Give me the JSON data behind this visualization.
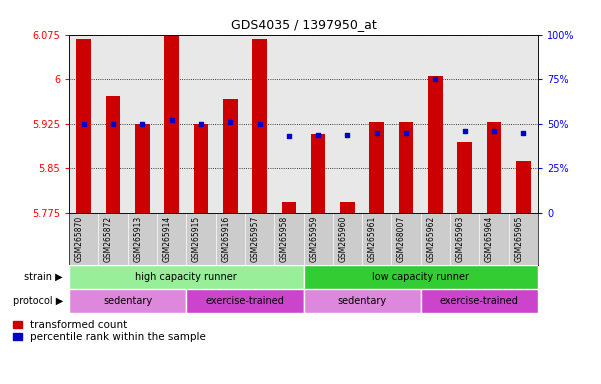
{
  "title": "GDS4035 / 1397950_at",
  "samples": [
    "GSM265870",
    "GSM265872",
    "GSM265913",
    "GSM265914",
    "GSM265915",
    "GSM265916",
    "GSM265957",
    "GSM265958",
    "GSM265959",
    "GSM265960",
    "GSM265961",
    "GSM268007",
    "GSM265962",
    "GSM265963",
    "GSM265964",
    "GSM265965"
  ],
  "transformed_count": [
    6.068,
    5.972,
    5.925,
    6.075,
    5.925,
    5.967,
    6.068,
    5.793,
    5.908,
    5.793,
    5.928,
    5.928,
    6.005,
    5.895,
    5.928,
    5.862
  ],
  "percentile_rank": [
    50,
    50,
    50,
    52,
    50,
    51,
    50,
    43,
    44,
    44,
    45,
    45,
    75,
    46,
    46,
    45
  ],
  "ylim_left": [
    5.775,
    6.075
  ],
  "ylim_right": [
    0,
    100
  ],
  "yticks_left": [
    5.775,
    5.85,
    5.925,
    6.0,
    6.075
  ],
  "yticks_right": [
    0,
    25,
    50,
    75,
    100
  ],
  "ytick_labels_left": [
    "5.775",
    "5.85",
    "5.925",
    "6",
    "6.075"
  ],
  "ytick_labels_right": [
    "0",
    "25%",
    "50%",
    "75%",
    "100%"
  ],
  "bar_color": "#cc0000",
  "dot_color": "#0000cc",
  "bar_bottom": 5.775,
  "strain_groups": [
    {
      "label": "high capacity runner",
      "start": 0,
      "end": 8,
      "color": "#99ee99"
    },
    {
      "label": "low capacity runner",
      "start": 8,
      "end": 16,
      "color": "#33cc33"
    }
  ],
  "protocol_groups": [
    {
      "label": "sedentary",
      "start": 0,
      "end": 4,
      "color": "#dd88dd"
    },
    {
      "label": "exercise-trained",
      "start": 4,
      "end": 8,
      "color": "#cc44cc"
    },
    {
      "label": "sedentary",
      "start": 8,
      "end": 12,
      "color": "#dd88dd"
    },
    {
      "label": "exercise-trained",
      "start": 12,
      "end": 16,
      "color": "#cc44cc"
    }
  ],
  "legend_red_label": "transformed count",
  "legend_blue_label": "percentile rank within the sample",
  "background_color": "#e8e8e8",
  "tick_bg_color": "#cccccc",
  "bar_width": 0.5,
  "n_samples": 16
}
